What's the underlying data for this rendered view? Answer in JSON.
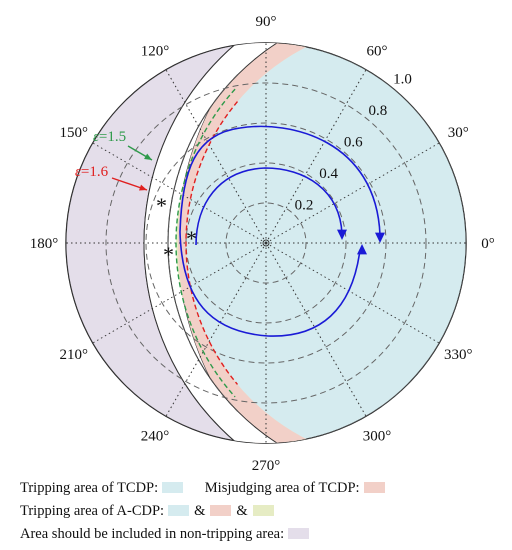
{
  "angle_labels": [
    {
      "text": "0°",
      "deg": 0
    },
    {
      "text": "30°",
      "deg": 30
    },
    {
      "text": "60°",
      "deg": 60
    },
    {
      "text": "90°",
      "deg": 90
    },
    {
      "text": "120°",
      "deg": 120
    },
    {
      "text": "150°",
      "deg": 150
    },
    {
      "text": "180°",
      "deg": 180
    },
    {
      "text": "210°",
      "deg": 210
    },
    {
      "text": "240°",
      "deg": 240
    },
    {
      "text": "270°",
      "deg": 270
    },
    {
      "text": "300°",
      "deg": 300
    },
    {
      "text": "330°",
      "deg": 330
    }
  ],
  "radial_labels": [
    {
      "text": "0.2",
      "r": 0.2
    },
    {
      "text": "0.4",
      "r": 0.4
    },
    {
      "text": "0.6",
      "r": 0.6
    },
    {
      "text": "0.8",
      "r": 0.8
    },
    {
      "text": "1.0",
      "r": 1.0
    }
  ],
  "epsilon_labels": {
    "e15": {
      "var": "ε",
      "value": "=1.5",
      "color": "#2e9a4a"
    },
    "e16": {
      "var": "ε",
      "value": "=1.6",
      "color": "#e02020"
    }
  },
  "marker_glyph": "*",
  "colors": {
    "tcdp_trip": "#d5ebef",
    "tcdp_misjudge": "#f2d0c8",
    "acdp_green": "#e6ecc4",
    "non_trip": "#e4deea",
    "trajectory": "#1a1ad6",
    "eps15": "#2e9a4a",
    "eps16": "#e02020"
  },
  "legend": {
    "row1": {
      "label1": "Tripping area of TCDP:",
      "label2": "Misjudging area  of TCDP:"
    },
    "row2": {
      "label": "Tripping area of A-CDP:",
      "amp1": "&",
      "amp2": "&"
    },
    "row3": {
      "label": "Area should be included in non-tripping area:"
    }
  }
}
